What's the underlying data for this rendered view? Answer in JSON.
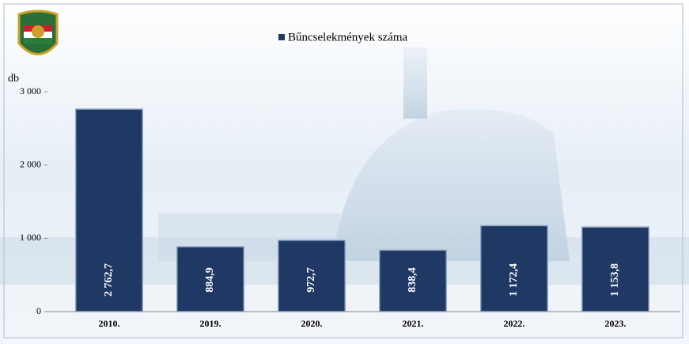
{
  "chart_data": {
    "type": "bar",
    "legend_label": "Bűncselekmények száma",
    "y_axis_label": "db",
    "categories": [
      "2010.",
      "2019.",
      "2020.",
      "2021.",
      "2022.",
      "2023."
    ],
    "values": [
      2762.7,
      884.9,
      972.7,
      838.4,
      1172.4,
      1153.8
    ],
    "value_labels": [
      "2 762,7",
      "884,9",
      "972,7",
      "838,4",
      "1 172,4",
      "1 153,8"
    ],
    "color": "#1f3864",
    "ylim": [
      0,
      3000
    ],
    "yticks": [
      {
        "value": 0,
        "label": "0"
      },
      {
        "value": 1000,
        "label": "1 000"
      },
      {
        "value": 2000,
        "label": "2 000"
      },
      {
        "value": 3000,
        "label": "3 000"
      }
    ]
  }
}
